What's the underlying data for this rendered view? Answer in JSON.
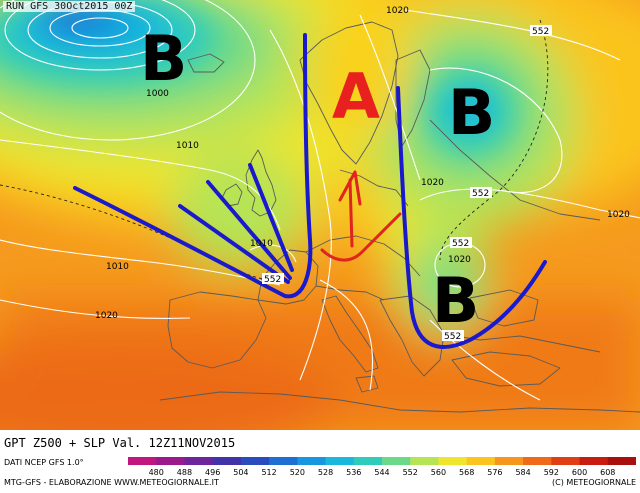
{
  "header": {
    "run_label": "RUN GFS 30Oct2015 00Z"
  },
  "footer": {
    "title": "GPT Z500 + SLP Val. 12Z11NOV2015",
    "source": "DATI NCEP GFS 1.0°",
    "credit_left": "MTG-GFS - ELABORAZIONE WWW.METEOGIORNALE.IT",
    "credit_right": "(C) METEOGIORNALE"
  },
  "legend": {
    "values": [
      "480",
      "488",
      "496",
      "504",
      "512",
      "520",
      "528",
      "536",
      "544",
      "552",
      "560",
      "568",
      "576",
      "584",
      "592",
      "600",
      "608"
    ],
    "colors": [
      "#c0167e",
      "#9a1a8c",
      "#6d259b",
      "#4233a8",
      "#2a4bbd",
      "#1e6fd2",
      "#1896df",
      "#19b8dc",
      "#2fccbd",
      "#6bd98a",
      "#b6e455",
      "#efe52c",
      "#fbc41e",
      "#f7961c",
      "#ef6a18",
      "#e23e14",
      "#c81c10",
      "#a80f0d"
    ]
  },
  "labels": {
    "pressure_systems": [
      "B",
      "A",
      "B",
      "B"
    ],
    "isobars": [
      "1020",
      "1000",
      "1010",
      "1020",
      "1010",
      "1010",
      "1020",
      "1020",
      "1020"
    ],
    "z500": [
      "552",
      "552",
      "552",
      "552",
      "552"
    ]
  },
  "colors": {
    "trough_axes": "#1a1acc",
    "ridge_axis": "#e0241e",
    "high_letter": "#e8201e",
    "low_letter": "#000000",
    "isobars": "#ffffff",
    "coastline": "#5a5a5a"
  }
}
